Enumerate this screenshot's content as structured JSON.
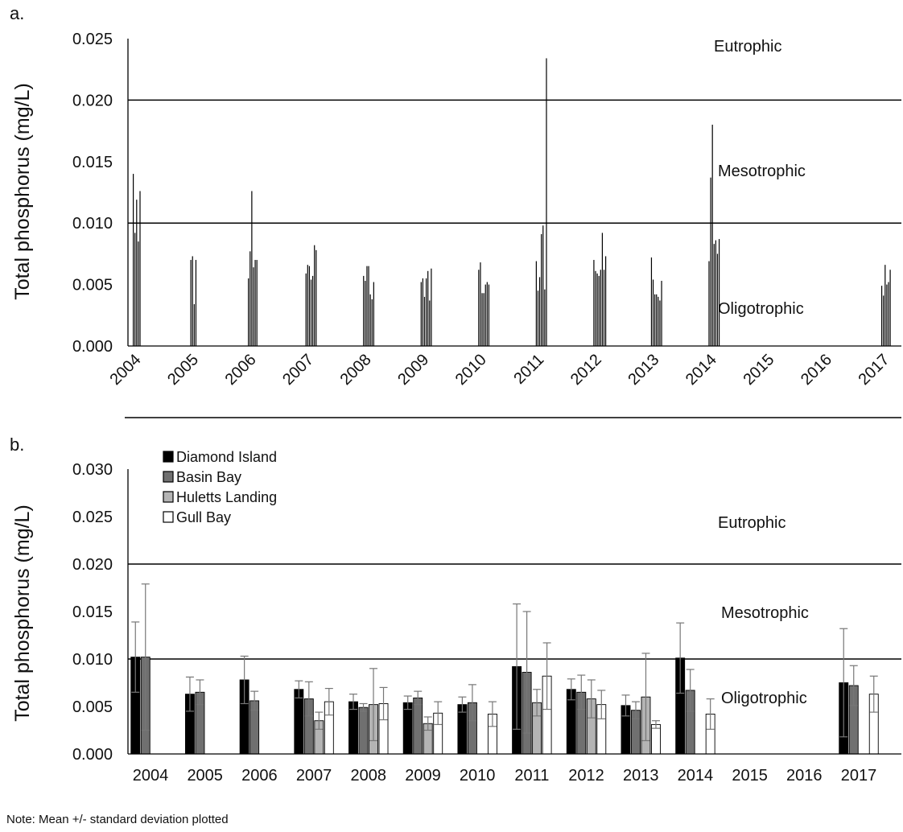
{
  "figure_note": "Note: Mean +/- standard deviation plotted",
  "chart_data": [
    {
      "panel": "a.",
      "type": "bar",
      "ylabel": "Total phosphorus (mg/L)",
      "ylim": [
        0,
        0.025
      ],
      "yticks": [
        "0.000",
        "0.005",
        "0.010",
        "0.015",
        "0.020",
        "0.025"
      ],
      "categories": [
        "2004",
        "2005",
        "2006",
        "2007",
        "2008",
        "2009",
        "2010",
        "2011",
        "2012",
        "2013",
        "2014",
        "2015",
        "2016",
        "2017"
      ],
      "thresholds": [
        0.01,
        0.02
      ],
      "zones": [
        "Eutrophic",
        "Mesotrophic",
        "Oligotrophic"
      ],
      "grid": false,
      "samples": [
        {
          "year": "2004",
          "values": [
            0.014,
            0.0092,
            0.0119,
            0.0085,
            0.0126
          ]
        },
        {
          "year": "2005",
          "values": [
            0.007,
            0.0073,
            0.0034,
            0.007
          ]
        },
        {
          "year": "2006",
          "values": [
            0.0055,
            0.0077,
            0.0126,
            0.0064,
            0.007,
            0.007
          ]
        },
        {
          "year": "2007",
          "values": [
            0.0059,
            0.0066,
            0.0065,
            0.0054,
            0.0057,
            0.0082,
            0.0078
          ]
        },
        {
          "year": "2008",
          "values": [
            0.0057,
            0.0053,
            0.0065,
            0.0065,
            0.0042,
            0.0038,
            0.0052
          ]
        },
        {
          "year": "2009",
          "values": [
            0.0052,
            0.0055,
            0.004,
            0.0055,
            0.0061,
            0.0037,
            0.0063
          ]
        },
        {
          "year": "2010",
          "values": [
            0.0062,
            0.0068,
            0.0043,
            0.0043,
            0.005,
            0.0052,
            0.005
          ]
        },
        {
          "year": "2011",
          "values": [
            0.0069,
            0.0045,
            0.0056,
            0.0091,
            0.0098,
            0.0046,
            0.0234
          ]
        },
        {
          "year": "2012",
          "values": [
            0.007,
            0.0061,
            0.0059,
            0.0057,
            0.0062,
            0.0092,
            0.0062,
            0.0073
          ]
        },
        {
          "year": "2013",
          "values": [
            0.0072,
            0.0054,
            0.0042,
            0.0042,
            0.004,
            0.0037,
            0.0053
          ]
        },
        {
          "year": "2014",
          "values": [
            0.0069,
            0.0137,
            0.018,
            0.0083,
            0.0086,
            0.0075,
            0.0087
          ]
        },
        {
          "year": "2015",
          "values": []
        },
        {
          "year": "2016",
          "values": []
        },
        {
          "year": "2017",
          "values": [
            0.0049,
            0.0041,
            0.0066,
            0.005,
            0.0052,
            0.0062
          ]
        }
      ]
    },
    {
      "panel": "b.",
      "type": "bar",
      "ylabel": "Total phosphorus (mg/L)",
      "ylim": [
        0,
        0.03
      ],
      "yticks": [
        "0.000",
        "0.005",
        "0.010",
        "0.015",
        "0.020",
        "0.025",
        "0.030"
      ],
      "categories": [
        "2004",
        "2005",
        "2006",
        "2007",
        "2008",
        "2009",
        "2010",
        "2011",
        "2012",
        "2013",
        "2014",
        "2015",
        "2016",
        "2017"
      ],
      "thresholds": [
        0.01,
        0.02
      ],
      "zones": [
        "Eutrophic",
        "Mesotrophic",
        "Oligotrophic"
      ],
      "legend_position": "top-left",
      "grid": false,
      "series": [
        {
          "name": "Diamond Island",
          "color": "#000000",
          "values": [
            0.0102,
            0.0063,
            0.0078,
            0.0068,
            0.0055,
            0.0054,
            0.0052,
            0.0092,
            0.0068,
            0.0051,
            0.0101,
            null,
            null,
            0.0075
          ],
          "errors": [
            0.0037,
            0.0018,
            0.0025,
            0.0009,
            0.0008,
            0.0007,
            0.0008,
            0.0066,
            0.0011,
            0.0011,
            0.0037,
            null,
            null,
            0.0057
          ]
        },
        {
          "name": "Basin Bay",
          "color": "#707070",
          "values": [
            0.0102,
            0.0065,
            0.0056,
            0.0058,
            0.0049,
            0.0059,
            0.0054,
            0.0086,
            0.0065,
            0.0046,
            0.0067,
            null,
            null,
            0.0072
          ],
          "errors": [
            0.0077,
            0.0013,
            0.001,
            0.0018,
            0.0004,
            0.0007,
            0.0019,
            0.0064,
            0.0018,
            0.0009,
            0.0022,
            null,
            null,
            0.0021
          ]
        },
        {
          "name": "Huletts Landing",
          "color": "#b4b4b4",
          "values": [
            null,
            null,
            null,
            0.0035,
            0.0052,
            0.0032,
            null,
            0.0054,
            0.0058,
            0.006,
            null,
            null,
            null,
            null
          ],
          "errors": [
            null,
            null,
            null,
            0.0009,
            0.0038,
            0.0007,
            null,
            0.0014,
            0.002,
            0.0046,
            null,
            null,
            null,
            null
          ]
        },
        {
          "name": "Gull Bay",
          "color": "#ffffff",
          "values": [
            null,
            null,
            null,
            0.0055,
            0.0053,
            0.0043,
            0.0042,
            0.0082,
            0.0052,
            0.0031,
            0.0042,
            null,
            null,
            0.0063
          ],
          "errors": [
            null,
            null,
            null,
            0.0014,
            0.0017,
            0.0012,
            0.0013,
            0.0035,
            0.0015,
            0.0004,
            0.0016,
            null,
            null,
            0.0019
          ]
        }
      ]
    }
  ]
}
